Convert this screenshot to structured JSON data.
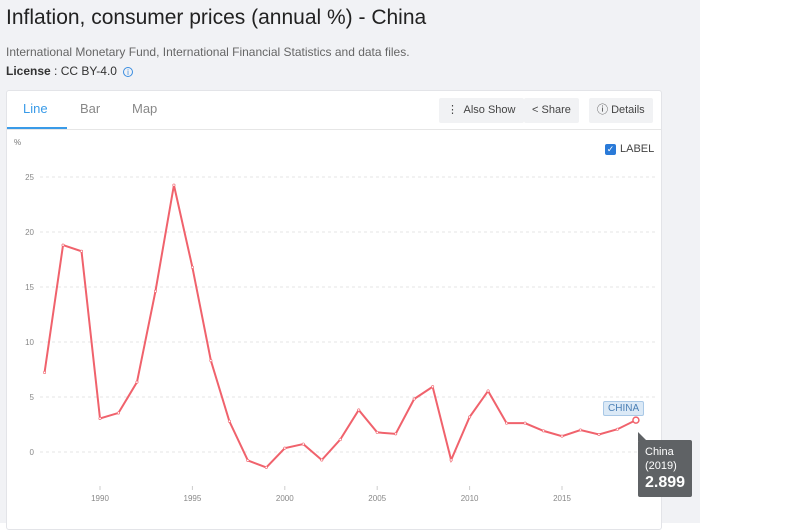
{
  "title": "Inflation, consumer prices (annual %) - China",
  "source": "International Monetary Fund, International Financial Statistics and data files.",
  "license": {
    "label": "License",
    "value": ": CC BY-4.0"
  },
  "tabs": [
    {
      "label": "Line",
      "active": true
    },
    {
      "label": "Bar"
    },
    {
      "label": "Map"
    }
  ],
  "buttons": {
    "also_show": "Also Show",
    "share": "Share",
    "details": "Details"
  },
  "label_toggle": {
    "label": "LABEL",
    "checked": true
  },
  "tooltip": {
    "name": "China",
    "year": "(2019)",
    "value": "2.899"
  },
  "series_label": "CHINA",
  "chart_data": {
    "type": "line",
    "ylabel": "%",
    "ylim": [
      -2,
      26
    ],
    "yticks": [
      0,
      5,
      10,
      15,
      20,
      25
    ],
    "xticks": [
      1990,
      1995,
      2000,
      2005,
      2010,
      2015
    ],
    "grid": true,
    "color": "#f0626c",
    "series": [
      {
        "name": "China",
        "x": [
          1987,
          1988,
          1989,
          1990,
          1991,
          1992,
          1993,
          1994,
          1995,
          1996,
          1997,
          1998,
          1999,
          2000,
          2001,
          2002,
          2003,
          2004,
          2005,
          2006,
          2007,
          2008,
          2009,
          2010,
          2011,
          2012,
          2013,
          2014,
          2015,
          2016,
          2017,
          2018,
          2019
        ],
        "values": [
          7.23,
          18.81,
          18.25,
          3.05,
          3.55,
          6.35,
          14.61,
          24.26,
          16.79,
          8.31,
          2.79,
          -0.77,
          -1.4,
          0.35,
          0.72,
          -0.73,
          1.13,
          3.82,
          1.78,
          1.65,
          4.82,
          5.93,
          -0.73,
          3.18,
          5.55,
          2.62,
          2.62,
          1.92,
          1.44,
          2.0,
          1.59,
          2.07,
          2.899
        ]
      }
    ]
  }
}
